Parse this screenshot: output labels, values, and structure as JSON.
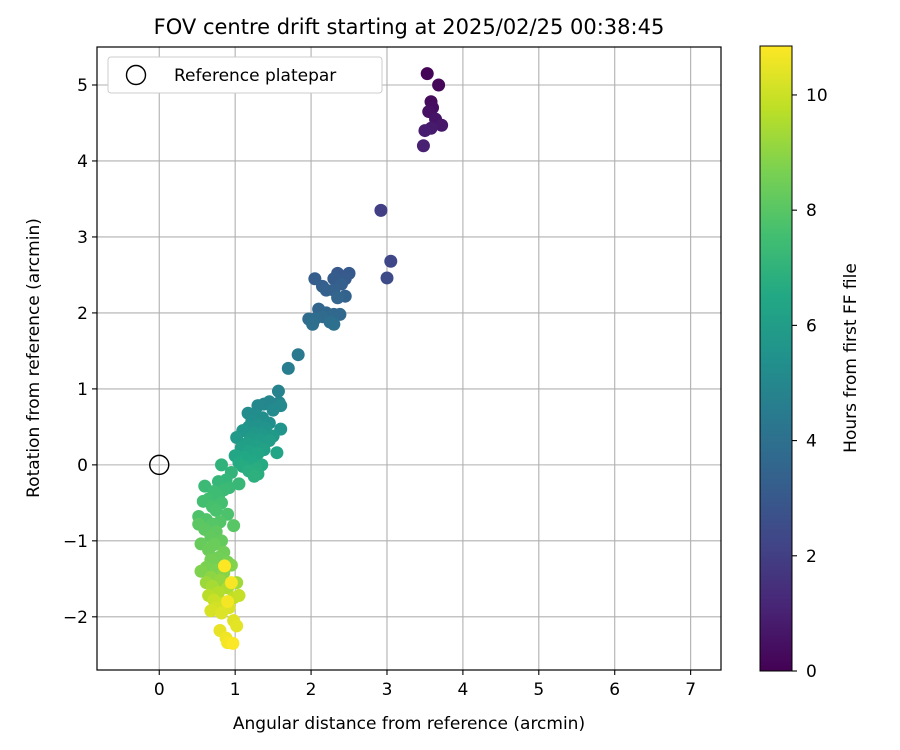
{
  "chart_data": {
    "type": "scatter",
    "title": "FOV centre drift starting at 2025/02/25 00:38:45",
    "xlabel": "Angular distance from reference (arcmin)",
    "ylabel": "Rotation from reference (arcmin)",
    "xlim": [
      -0.82,
      7.4
    ],
    "ylim": [
      -2.7,
      5.5
    ],
    "xticks": [
      "0",
      "1",
      "2",
      "3",
      "4",
      "5",
      "6",
      "7"
    ],
    "yticks": [
      "−2",
      "−1",
      "0",
      "1",
      "2",
      "3",
      "4",
      "5"
    ],
    "grid": true,
    "legend": {
      "position": "top-left",
      "entries": [
        "Reference platepar"
      ]
    },
    "reference_point": {
      "x": 0,
      "y": 0
    },
    "colorbar": {
      "label": "Hours from first FF file",
      "range": [
        0,
        10.85
      ],
      "ticks": [
        "0",
        "2",
        "4",
        "6",
        "8",
        "10"
      ],
      "colormap": "viridis"
    },
    "points": [
      [
        3.53,
        5.15,
        0.1
      ],
      [
        3.68,
        5.0,
        0.2
      ],
      [
        3.58,
        4.78,
        0.3
      ],
      [
        3.6,
        4.7,
        0.4
      ],
      [
        3.55,
        4.65,
        0.5
      ],
      [
        3.64,
        4.55,
        0.6
      ],
      [
        3.72,
        4.47,
        0.7
      ],
      [
        3.58,
        4.43,
        0.8
      ],
      [
        3.5,
        4.4,
        0.9
      ],
      [
        3.48,
        4.2,
        1.0
      ],
      [
        2.92,
        3.35,
        2.0
      ],
      [
        3.05,
        2.68,
        2.3
      ],
      [
        3.0,
        2.46,
        2.5
      ],
      [
        2.35,
        2.52,
        3.0
      ],
      [
        2.5,
        2.52,
        3.05
      ],
      [
        2.45,
        2.45,
        3.1
      ],
      [
        2.3,
        2.45,
        3.15
      ],
      [
        2.05,
        2.45,
        3.2
      ],
      [
        2.4,
        2.38,
        3.25
      ],
      [
        2.15,
        2.35,
        3.3
      ],
      [
        2.2,
        2.3,
        3.35
      ],
      [
        2.3,
        2.3,
        3.4
      ],
      [
        2.45,
        2.22,
        3.45
      ],
      [
        2.35,
        2.2,
        3.5
      ],
      [
        2.1,
        2.05,
        3.55
      ],
      [
        2.2,
        2.0,
        3.6
      ],
      [
        2.3,
        1.98,
        3.65
      ],
      [
        2.38,
        1.98,
        3.7
      ],
      [
        2.15,
        1.95,
        3.75
      ],
      [
        1.97,
        1.92,
        3.8
      ],
      [
        2.05,
        1.92,
        3.85
      ],
      [
        2.25,
        1.88,
        3.9
      ],
      [
        2.02,
        1.85,
        3.95
      ],
      [
        2.3,
        1.85,
        4.0
      ],
      [
        1.83,
        1.45,
        4.4
      ],
      [
        1.7,
        1.27,
        4.6
      ],
      [
        1.57,
        0.97,
        4.8
      ],
      [
        1.58,
        0.82,
        4.9
      ],
      [
        1.45,
        0.83,
        4.95
      ],
      [
        1.38,
        0.8,
        5.0
      ],
      [
        1.3,
        0.78,
        5.05
      ],
      [
        1.6,
        0.78,
        5.1
      ],
      [
        1.5,
        0.72,
        5.15
      ],
      [
        1.17,
        0.68,
        5.2
      ],
      [
        1.28,
        0.65,
        5.25
      ],
      [
        1.36,
        0.62,
        5.3
      ],
      [
        1.22,
        0.58,
        5.35
      ],
      [
        1.45,
        0.55,
        5.4
      ],
      [
        1.3,
        0.52,
        5.45
      ],
      [
        1.18,
        0.5,
        5.5
      ],
      [
        1.4,
        0.48,
        5.55
      ],
      [
        1.6,
        0.47,
        5.6
      ],
      [
        1.1,
        0.45,
        5.65
      ],
      [
        1.25,
        0.42,
        5.7
      ],
      [
        1.35,
        0.4,
        5.75
      ],
      [
        1.5,
        0.38,
        5.8
      ],
      [
        1.02,
        0.36,
        5.85
      ],
      [
        1.2,
        0.35,
        5.9
      ],
      [
        1.32,
        0.33,
        5.95
      ],
      [
        1.45,
        0.32,
        6.0
      ],
      [
        1.15,
        0.28,
        6.05
      ],
      [
        1.28,
        0.25,
        6.1
      ],
      [
        1.08,
        0.22,
        6.15
      ],
      [
        1.38,
        0.2,
        6.2
      ],
      [
        1.18,
        0.18,
        6.25
      ],
      [
        1.55,
        0.16,
        6.3
      ],
      [
        1.3,
        0.15,
        6.35
      ],
      [
        1.0,
        0.12,
        6.4
      ],
      [
        1.12,
        0.1,
        6.45
      ],
      [
        1.22,
        0.05,
        6.5
      ],
      [
        1.05,
        0.03,
        6.55
      ],
      [
        1.35,
        0.0,
        6.6
      ],
      [
        1.1,
        -0.02,
        6.65
      ],
      [
        1.28,
        -0.05,
        6.7
      ],
      [
        1.18,
        -0.08,
        6.75
      ],
      [
        1.3,
        -0.12,
        6.8
      ],
      [
        1.25,
        -0.15,
        6.85
      ],
      [
        0.82,
        0.0,
        7.0
      ],
      [
        0.95,
        -0.1,
        7.05
      ],
      [
        0.88,
        -0.2,
        7.1
      ],
      [
        0.78,
        -0.22,
        7.15
      ],
      [
        1.05,
        -0.25,
        7.2
      ],
      [
        0.92,
        -0.3,
        7.25
      ],
      [
        0.85,
        -0.33,
        7.3
      ],
      [
        0.6,
        -0.28,
        7.35
      ],
      [
        0.72,
        -0.35,
        7.4
      ],
      [
        0.78,
        -0.42,
        7.45
      ],
      [
        0.65,
        -0.45,
        7.5
      ],
      [
        0.58,
        -0.48,
        7.55
      ],
      [
        0.82,
        -0.5,
        7.6
      ],
      [
        0.7,
        -0.55,
        7.65
      ],
      [
        0.75,
        -0.6,
        7.7
      ],
      [
        0.9,
        -0.65,
        7.75
      ],
      [
        0.52,
        -0.68,
        7.8
      ],
      [
        0.62,
        -0.72,
        7.85
      ],
      [
        0.8,
        -0.75,
        7.9
      ],
      [
        0.7,
        -0.78,
        7.95
      ],
      [
        0.98,
        -0.8,
        8.0
      ],
      [
        0.52,
        -0.78,
        8.05
      ],
      [
        0.6,
        -0.85,
        8.1
      ],
      [
        0.75,
        -0.88,
        8.15
      ],
      [
        0.68,
        -0.95,
        8.2
      ],
      [
        0.82,
        -1.0,
        8.25
      ],
      [
        0.55,
        -1.04,
        8.3
      ],
      [
        0.72,
        -1.05,
        8.35
      ],
      [
        0.65,
        -1.12,
        8.4
      ],
      [
        0.85,
        -1.15,
        8.45
      ],
      [
        0.78,
        -1.22,
        8.5
      ],
      [
        0.68,
        -1.25,
        8.55
      ],
      [
        0.9,
        -1.28,
        8.6
      ],
      [
        0.62,
        -1.35,
        8.65
      ],
      [
        0.75,
        -1.38,
        8.7
      ],
      [
        0.55,
        -1.4,
        8.75
      ],
      [
        0.95,
        -1.32,
        8.8
      ],
      [
        0.85,
        -1.42,
        8.9
      ],
      [
        0.68,
        -1.48,
        9.0
      ],
      [
        0.8,
        -1.52,
        9.1
      ],
      [
        0.62,
        -1.55,
        9.2
      ],
      [
        1.02,
        -1.55,
        9.3
      ],
      [
        0.7,
        -1.6,
        9.4
      ],
      [
        0.9,
        -1.62,
        9.5
      ],
      [
        0.78,
        -1.68,
        9.6
      ],
      [
        0.65,
        -1.72,
        9.7
      ],
      [
        0.98,
        -1.75,
        9.8
      ],
      [
        1.05,
        -1.72,
        9.9
      ],
      [
        0.72,
        -1.78,
        9.95
      ],
      [
        0.85,
        -1.82,
        10.0
      ],
      [
        0.75,
        -1.88,
        10.1
      ],
      [
        0.68,
        -1.92,
        10.2
      ],
      [
        0.92,
        -1.88,
        10.25
      ],
      [
        0.82,
        -1.95,
        10.3
      ],
      [
        0.98,
        -2.05,
        10.35
      ],
      [
        1.02,
        -2.12,
        10.4
      ],
      [
        0.8,
        -2.18,
        10.5
      ],
      [
        0.88,
        -2.28,
        10.6
      ],
      [
        0.9,
        -2.34,
        10.7
      ],
      [
        0.97,
        -2.35,
        10.8
      ],
      [
        0.86,
        -1.33,
        10.85
      ],
      [
        0.95,
        -1.55,
        10.75
      ],
      [
        0.9,
        -1.8,
        10.7
      ]
    ]
  }
}
